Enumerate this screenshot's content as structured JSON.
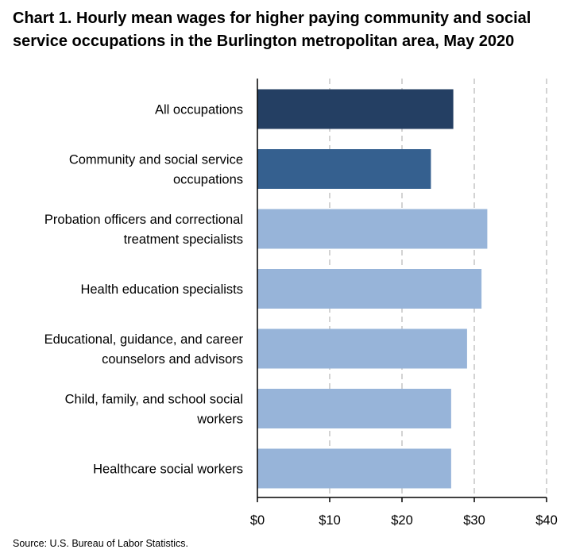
{
  "chart_data": {
    "type": "bar",
    "orientation": "horizontal",
    "title": "Chart 1. Hourly mean wages for higher paying community and social service occupations in the Burlington metropolitan area, May 2020",
    "source": "Source: U.S. Bureau of Labor Statistics.",
    "categories": [
      [
        "All occupations"
      ],
      [
        "Community and social service",
        "occupations"
      ],
      [
        "Probation officers and correctional",
        "treatment specialists"
      ],
      [
        "Health education specialists"
      ],
      [
        "Educational, guidance, and career",
        "counselors and advisors"
      ],
      [
        "Child, family, and school social",
        "workers"
      ],
      [
        "Healthcare social workers"
      ]
    ],
    "values": [
      27.1,
      24.0,
      31.8,
      31.0,
      29.0,
      26.8,
      26.8
    ],
    "bar_colors": [
      "#243f63",
      "#35608f",
      "#97b4d9",
      "#97b4d9",
      "#97b4d9",
      "#97b4d9",
      "#97b4d9"
    ],
    "xlim": [
      0,
      40
    ],
    "xticks": [
      0,
      10,
      20,
      30,
      40
    ],
    "xtick_labels": [
      "$0",
      "$10",
      "$20",
      "$30",
      "$40"
    ],
    "grid": "vertical dashed",
    "legend": "none",
    "xlabel": "",
    "ylabel": ""
  }
}
